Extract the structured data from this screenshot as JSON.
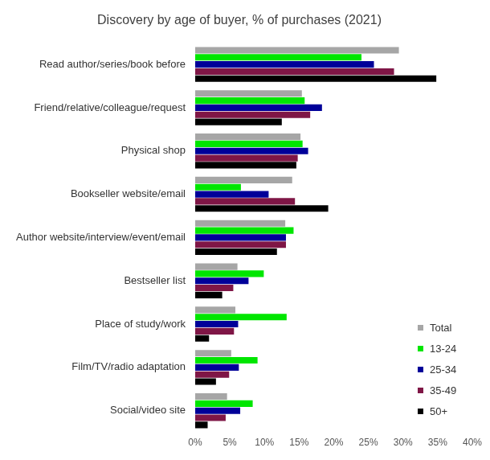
{
  "chart_data": {
    "type": "bar",
    "orientation": "horizontal",
    "title": "Discovery by age of buyer, % of purchases (2021)",
    "categories": [
      "Read author/series/book before",
      "Friend/relative/colleague/request",
      "Physical shop",
      "Bookseller website/email",
      "Author website/interview/event/email",
      "Bestseller list",
      "Place of study/work",
      "Film/TV/radio adaptation",
      "Social/video site"
    ],
    "series": [
      {
        "name": "Total",
        "color": "#a6a6a6",
        "values": [
          29.4,
          15.4,
          15.2,
          14.0,
          13.0,
          6.1,
          5.8,
          5.2,
          4.6
        ]
      },
      {
        "name": "13-24",
        "color": "#00e600",
        "values": [
          24.0,
          15.8,
          15.5,
          6.6,
          14.2,
          9.9,
          13.2,
          9.0,
          8.3
        ]
      },
      {
        "name": "25-34",
        "color": "#000099",
        "values": [
          25.8,
          18.3,
          16.3,
          10.6,
          13.1,
          7.7,
          6.2,
          6.3,
          6.5
        ]
      },
      {
        "name": "35-49",
        "color": "#7f1646",
        "values": [
          28.7,
          16.6,
          14.8,
          14.4,
          13.1,
          5.5,
          5.6,
          4.9,
          4.4
        ]
      },
      {
        "name": "50+",
        "color": "#000000",
        "values": [
          34.8,
          12.5,
          14.6,
          19.2,
          11.8,
          3.9,
          2.0,
          3.0,
          1.8
        ]
      }
    ],
    "xlim": [
      0,
      40
    ],
    "xticks": [
      {
        "value": 0,
        "label": "0%"
      },
      {
        "value": 5,
        "label": "5%"
      },
      {
        "value": 10,
        "label": "10%"
      },
      {
        "value": 15,
        "label": "15%"
      },
      {
        "value": 20,
        "label": "20%"
      },
      {
        "value": 25,
        "label": "25%"
      },
      {
        "value": 30,
        "label": "30%"
      },
      {
        "value": 35,
        "label": "35%"
      },
      {
        "value": 40,
        "label": "40%"
      }
    ],
    "grid": false,
    "legend": "lower right"
  }
}
